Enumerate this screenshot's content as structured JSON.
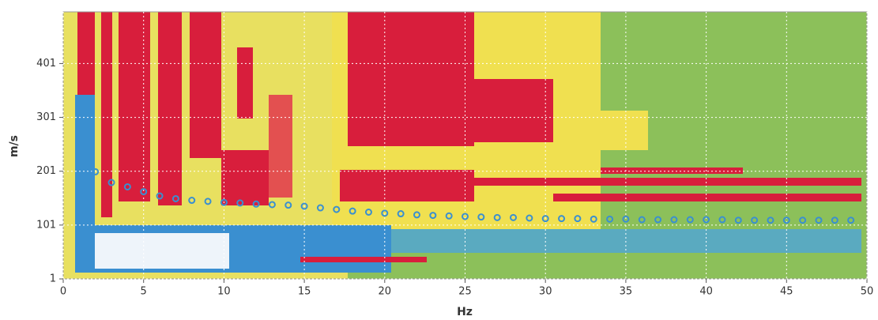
{
  "chart_data": {
    "type": "scatter",
    "x_label": "Hz",
    "y_label": "m/s",
    "xlim": [
      0,
      50
    ],
    "ylim": [
      1,
      497
    ],
    "xticks": [
      0,
      5,
      10,
      15,
      20,
      25,
      30,
      35,
      40,
      45,
      50
    ],
    "yticks": [
      1,
      101,
      201,
      301,
      401
    ],
    "grid": true,
    "series": [
      {
        "color": "#3a8fd0",
        "x": [
          2,
          3,
          4,
          5,
          6,
          7,
          8,
          9,
          10,
          11,
          12,
          13,
          14,
          15,
          16,
          17,
          18,
          19,
          20,
          21,
          22,
          23,
          24,
          25,
          26,
          27,
          28,
          29,
          30,
          31,
          32,
          33,
          34,
          35,
          36,
          37,
          38,
          39,
          40,
          41,
          42,
          43,
          44,
          45,
          46,
          47,
          48,
          49
        ],
        "values": [
          200,
          180,
          172,
          163,
          155,
          150,
          147,
          145,
          143,
          142,
          140,
          139,
          138,
          136,
          133,
          130,
          127,
          125,
          123,
          122,
          120,
          119,
          118,
          117,
          116,
          115,
          115,
          114,
          113,
          113,
          113,
          112,
          112,
          112,
          111,
          111,
          111,
          111,
          111,
          111,
          110,
          110,
          110,
          110,
          110,
          110,
          110,
          110
        ]
      }
    ]
  }
}
